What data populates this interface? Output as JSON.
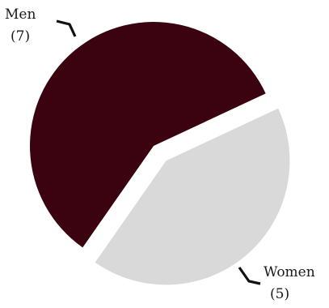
{
  "chart_data": {
    "type": "pie",
    "slices": [
      {
        "name": "Men",
        "value": 7,
        "value_text": "(7)",
        "color": "#3b0210",
        "exploded": false
      },
      {
        "name": "Women",
        "value": 5,
        "value_text": "(5)",
        "color": "#d9d9d9",
        "exploded": true
      }
    ],
    "title": "",
    "legend": "none"
  }
}
